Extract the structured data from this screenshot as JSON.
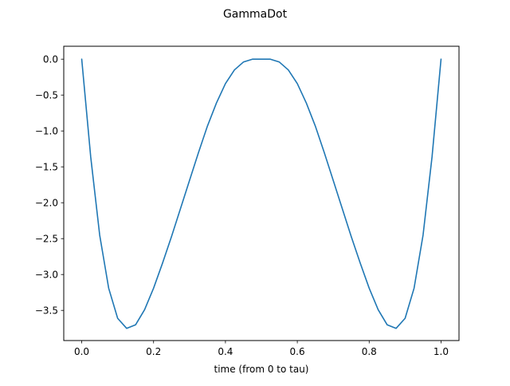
{
  "figure": {
    "suptitle": "GammaDot"
  },
  "chart_data": {
    "type": "line",
    "title": "GammaDot",
    "xlabel": "time (from 0 to tau)",
    "ylabel": "",
    "xlim": [
      -0.05,
      1.05
    ],
    "ylim": [
      -3.92,
      0.18
    ],
    "xticks": [
      0.0,
      0.2,
      0.4,
      0.6,
      0.8,
      1.0
    ],
    "xtick_labels": [
      "0.0",
      "0.2",
      "0.4",
      "0.6",
      "0.8",
      "1.0"
    ],
    "yticks": [
      0.0,
      -0.5,
      -1.0,
      -1.5,
      -2.0,
      -2.5,
      -3.0,
      -3.5
    ],
    "ytick_labels": [
      "0.0",
      "−0.5",
      "−1.0",
      "−1.5",
      "−2.0",
      "−2.5",
      "−3.0",
      "−3.5"
    ],
    "grid": false,
    "series": [
      {
        "color": "#1f77b4",
        "x": [
          0.0,
          0.025,
          0.05,
          0.075,
          0.1,
          0.125,
          0.15,
          0.175,
          0.2,
          0.225,
          0.25,
          0.275,
          0.3,
          0.325,
          0.35,
          0.375,
          0.4,
          0.425,
          0.45,
          0.475,
          0.5,
          0.525,
          0.55,
          0.575,
          0.6,
          0.625,
          0.65,
          0.675,
          0.7,
          0.725,
          0.75,
          0.775,
          0.8,
          0.825,
          0.85,
          0.875,
          0.9,
          0.925,
          0.95,
          0.975,
          1.0
        ],
        "y": [
          0.0,
          -1.36,
          -2.45,
          -3.19,
          -3.61,
          -3.75,
          -3.7,
          -3.49,
          -3.19,
          -2.84,
          -2.47,
          -2.08,
          -1.69,
          -1.3,
          -0.93,
          -0.61,
          -0.34,
          -0.15,
          -0.04,
          0.0,
          0.0,
          0.0,
          -0.04,
          -0.15,
          -0.34,
          -0.61,
          -0.93,
          -1.3,
          -1.69,
          -2.08,
          -2.47,
          -2.84,
          -3.19,
          -3.49,
          -3.7,
          -3.75,
          -3.61,
          -3.19,
          -2.45,
          -1.36,
          0.0
        ]
      }
    ]
  }
}
